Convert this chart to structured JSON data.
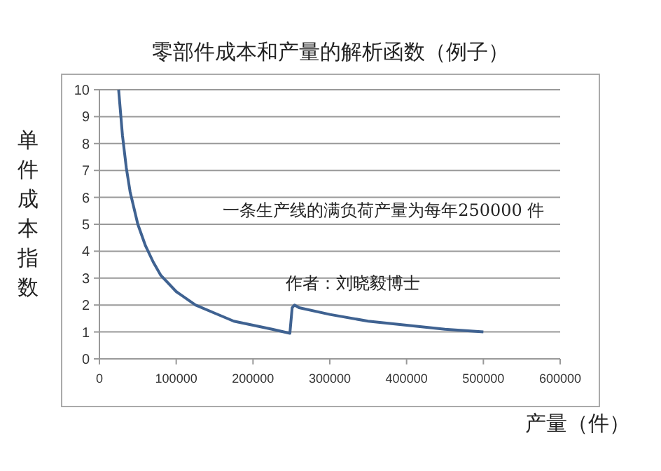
{
  "chart_data": {
    "type": "line",
    "title": "零部件成本和产量的解析函数（例子）",
    "xlabel": "产量（件）",
    "ylabel": "单件成本指数",
    "x": [
      25000,
      30000,
      35000,
      40000,
      50000,
      60000,
      70000,
      80000,
      100000,
      125000,
      150000,
      175000,
      200000,
      225000,
      248000,
      251000,
      254000,
      260000,
      300000,
      350000,
      400000,
      450000,
      500000
    ],
    "series": [
      {
        "color": "#3f6291",
        "values": [
          10,
          8.3,
          7.1,
          6.2,
          5,
          4.2,
          3.6,
          3.1,
          2.5,
          2,
          1.7,
          1.4,
          1.25,
          1.1,
          0.95,
          1.9,
          2.0,
          1.9,
          1.65,
          1.4,
          1.25,
          1.1,
          1.0
        ]
      }
    ],
    "xlim": [
      0,
      600000
    ],
    "xticks": [
      0,
      100000,
      200000,
      300000,
      400000,
      500000,
      600000
    ],
    "ylim": [
      0,
      10
    ],
    "yticks": [
      0,
      1,
      2,
      3,
      4,
      5,
      6,
      7,
      8,
      9,
      10
    ],
    "grid": "y",
    "annotations": [
      "一条生产线的满负荷产量为每年250000 件",
      "作者：刘晓毅博士"
    ]
  }
}
